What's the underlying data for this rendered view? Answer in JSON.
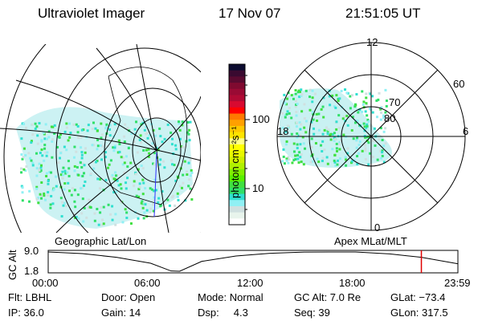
{
  "header": {
    "instrument": "Ultraviolet Imager",
    "date": "17 Nov 07",
    "time": "21:51:05 UT"
  },
  "left_panel": {
    "label": "Geographic Lat/Lon"
  },
  "right_panel": {
    "label": "Apex MLat/MLT",
    "mlt_labels": [
      "12",
      "6",
      "0",
      "18"
    ],
    "mlat_labels": [
      "60",
      "70",
      "80"
    ]
  },
  "colorbar": {
    "unit_label": "photon cm⁻²s⁻¹",
    "ticks": [
      "100",
      "10"
    ],
    "colors": [
      "#0c0c30",
      "#3a0a30",
      "#5a0a30",
      "#800a30",
      "#9a0a34",
      "#b00a34",
      "#d80a30",
      "#ff0000",
      "#ff7800",
      "#ffa000",
      "#ffc800",
      "#ffe400",
      "#ffff88",
      "#ffff00",
      "#e8f800",
      "#d0f000",
      "#b0f000",
      "#80f000",
      "#58f000",
      "#40e040",
      "#30e068",
      "#30e0d0",
      "#90f0f4",
      "#d0e0e0",
      "#e8f4ec",
      "#ffffff"
    ]
  },
  "chart_data": {
    "type": "line",
    "ylabel": "GC Alt",
    "yticks": [
      "9.0",
      "1.8"
    ],
    "ylim": [
      1.8,
      9.0
    ],
    "xticks": [
      "00:00",
      "06:00",
      "12:00",
      "18:00",
      "23:59"
    ],
    "xlim_hours": [
      0,
      24
    ],
    "x": [
      0,
      2,
      4,
      6,
      7.2,
      7.7,
      9,
      11,
      13,
      15,
      16.5,
      18,
      20,
      21.86,
      23.98
    ],
    "y": [
      9.0,
      8.4,
      7.0,
      4.8,
      1.9,
      1.8,
      5.5,
      7.5,
      8.5,
      8.95,
      9.0,
      9.0,
      8.3,
      7.0,
      4.6
    ],
    "current_time_hours": 21.86,
    "current_color": "#e00000"
  },
  "info": {
    "row1": [
      "Flt: LBHL",
      "Door: Open",
      "Mode: Normal",
      "GC Alt: 7.0 Re",
      "GLat: −73.4"
    ],
    "row2": [
      "IP: 36.0",
      "Gain: 14",
      "Dsp:     4.3",
      "Seq: 39",
      "GLon: 317.5"
    ]
  }
}
